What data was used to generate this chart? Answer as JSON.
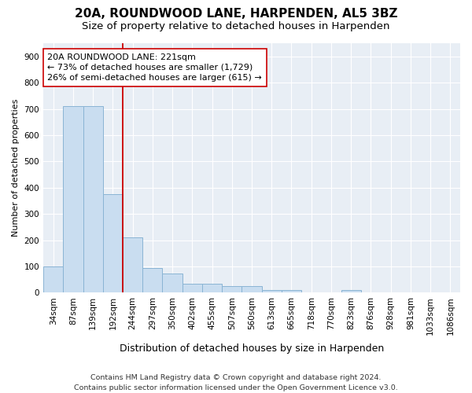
{
  "title": "20A, ROUNDWOOD LANE, HARPENDEN, AL5 3BZ",
  "subtitle": "Size of property relative to detached houses in Harpenden",
  "xlabel": "Distribution of detached houses by size in Harpenden",
  "ylabel": "Number of detached properties",
  "categories": [
    "34sqm",
    "87sqm",
    "139sqm",
    "192sqm",
    "244sqm",
    "297sqm",
    "350sqm",
    "402sqm",
    "455sqm",
    "507sqm",
    "560sqm",
    "613sqm",
    "665sqm",
    "718sqm",
    "770sqm",
    "823sqm",
    "876sqm",
    "928sqm",
    "981sqm",
    "1033sqm",
    "1086sqm"
  ],
  "values": [
    100,
    710,
    710,
    375,
    210,
    95,
    72,
    35,
    35,
    25,
    25,
    10,
    10,
    0,
    0,
    10,
    0,
    0,
    0,
    0,
    0
  ],
  "bar_color": "#c9ddf0",
  "bar_edgecolor": "#8ab4d4",
  "bar_linewidth": 0.7,
  "vline_color": "#cc0000",
  "vline_linewidth": 1.3,
  "vline_x": 3.5,
  "annotation_text": "20A ROUNDWOOD LANE: 221sqm\n← 73% of detached houses are smaller (1,729)\n26% of semi-detached houses are larger (615) →",
  "annotation_box_facecolor": "#ffffff",
  "annotation_box_edgecolor": "#cc0000",
  "ylim": [
    0,
    950
  ],
  "yticks": [
    0,
    100,
    200,
    300,
    400,
    500,
    600,
    700,
    800,
    900
  ],
  "fig_background": "#ffffff",
  "plot_background": "#e8eef5",
  "grid_color": "#ffffff",
  "footer_text": "Contains HM Land Registry data © Crown copyright and database right 2024.\nContains public sector information licensed under the Open Government Licence v3.0.",
  "title_fontsize": 11,
  "subtitle_fontsize": 9.5,
  "xlabel_fontsize": 9,
  "ylabel_fontsize": 8,
  "tick_fontsize": 7.5,
  "annotation_fontsize": 8,
  "footer_fontsize": 6.8
}
